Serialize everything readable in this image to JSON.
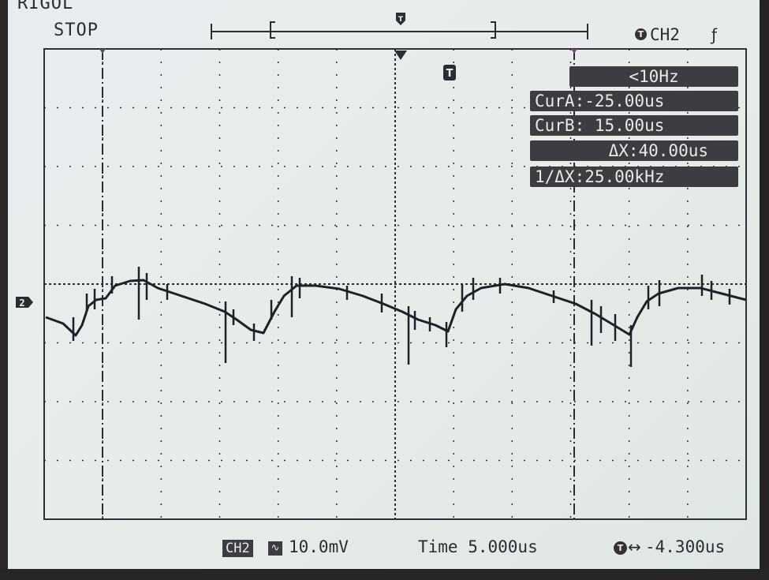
{
  "header": {
    "brand": "RIGOL",
    "run_status": "STOP",
    "trigger_channel": "CH2",
    "trigger_channel_icon": "trigger-icon",
    "edge_icon": "rising-edge-icon"
  },
  "measurements": {
    "frequency": "<10Hz",
    "cursor_a": "CurA:-25.00us",
    "cursor_b": "CurB: 15.00us",
    "delta_x": "ΔX:40.00us",
    "inverse_delta_x": "1/ΔX:25.00kHz"
  },
  "footer": {
    "channel_badge": "CH2",
    "coupling_icon": "ac-coupling-icon",
    "volts_per_div": "10.0mV",
    "time_label": "Time 5.000us",
    "trigger_offset_icon": "trigger-icon",
    "trigger_offset": "-4.300us"
  },
  "channel_marker": "2",
  "trigger_marker": "T",
  "colors": {
    "screen_bg": "#e8ecec",
    "grid": "#2d3035",
    "trace": "#1e2226",
    "readout_bg": "#3b3d40",
    "readout_text": "#e6e8ea"
  }
}
